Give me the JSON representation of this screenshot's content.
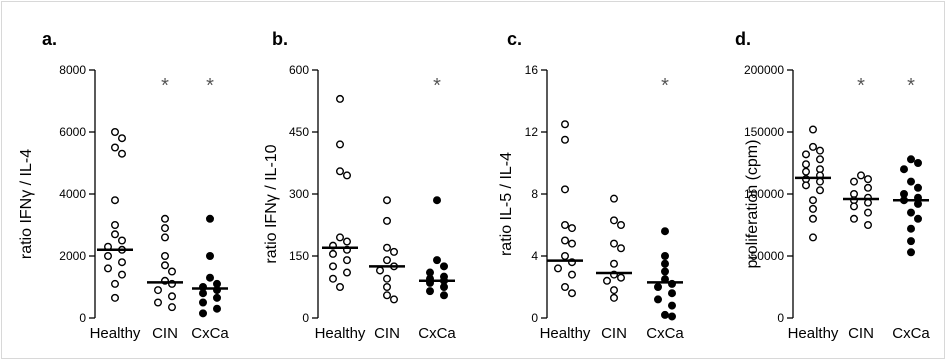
{
  "chart_data": [
    {
      "type": "scatter",
      "panel_label": "a.",
      "ylabel": "ratio IFNγ / IL-4",
      "ylim": [
        0,
        8000
      ],
      "yticks": [
        "0",
        "2000",
        "4000",
        "6000",
        "8000"
      ],
      "categories": [
        "Healthy",
        "CIN",
        "CxCa"
      ],
      "markers": [
        "open",
        "open",
        "filled"
      ],
      "significance": [
        "",
        "*",
        "*"
      ],
      "medians": [
        2200,
        1150,
        950
      ],
      "groups": [
        [
          6000,
          5800,
          5500,
          5300,
          3800,
          3000,
          2700,
          2500,
          2300,
          2200,
          2000,
          1800,
          1600,
          1400,
          1100,
          650
        ],
        [
          3200,
          2900,
          2600,
          2000,
          1700,
          1500,
          1200,
          1100,
          900,
          700,
          500,
          350
        ],
        [
          3200,
          2000,
          1300,
          1100,
          1000,
          900,
          800,
          650,
          500,
          300,
          150
        ]
      ]
    },
    {
      "type": "scatter",
      "panel_label": "b.",
      "ylabel": "ratio IFNγ / IL-10",
      "ylim": [
        0,
        600
      ],
      "yticks": [
        "0",
        "150",
        "300",
        "450",
        "600"
      ],
      "categories": [
        "Healthy",
        "CIN",
        "CxCa"
      ],
      "markers": [
        "open",
        "open",
        "filled"
      ],
      "significance": [
        "",
        "",
        "*"
      ],
      "medians": [
        170,
        125,
        90
      ],
      "groups": [
        [
          530,
          420,
          355,
          345,
          195,
          185,
          175,
          165,
          155,
          140,
          125,
          110,
          95,
          75
        ],
        [
          285,
          235,
          170,
          160,
          140,
          125,
          115,
          95,
          75,
          55,
          45
        ],
        [
          285,
          140,
          125,
          110,
          100,
          95,
          90,
          85,
          75,
          65,
          55
        ]
      ]
    },
    {
      "type": "scatter",
      "panel_label": "c.",
      "ylabel": "ratio IL-5 / IL-4",
      "ylim": [
        0,
        16
      ],
      "yticks": [
        "0",
        "4",
        "8",
        "12",
        "16"
      ],
      "categories": [
        "Healthy",
        "CIN",
        "CxCa"
      ],
      "markers": [
        "open",
        "open",
        "filled"
      ],
      "significance": [
        "",
        "",
        "*"
      ],
      "medians": [
        3.7,
        2.9,
        2.3
      ],
      "groups": [
        [
          12.5,
          11.5,
          8.3,
          6.0,
          5.8,
          5.0,
          4.8,
          4.0,
          3.6,
          3.2,
          2.8,
          2.0,
          1.6
        ],
        [
          7.7,
          6.3,
          6.0,
          4.8,
          4.5,
          3.5,
          2.8,
          2.6,
          2.4,
          1.8,
          1.3
        ],
        [
          5.6,
          4.0,
          3.5,
          3.0,
          2.5,
          2.2,
          2.0,
          1.6,
          1.2,
          0.8,
          0.2,
          0.1
        ]
      ]
    },
    {
      "type": "scatter",
      "panel_label": "d.",
      "ylabel": "proliferation (cpm)",
      "ylim": [
        0,
        200000
      ],
      "yticks": [
        "0",
        "50000",
        "100000",
        "150000",
        "200000"
      ],
      "categories": [
        "Healthy",
        "CIN",
        "CxCa"
      ],
      "markers": [
        "open",
        "open",
        "filled"
      ],
      "significance": [
        "",
        "*",
        "*"
      ],
      "medians": [
        113000,
        96000,
        95000
      ],
      "groups": [
        [
          152000,
          138000,
          135000,
          132000,
          128000,
          124000,
          120000,
          118000,
          115000,
          112000,
          110000,
          107000,
          103000,
          95000,
          88000,
          80000,
          65000
        ],
        [
          115000,
          112000,
          110000,
          105000,
          100000,
          97000,
          95000,
          93000,
          90000,
          85000,
          80000,
          75000
        ],
        [
          128000,
          125000,
          120000,
          110000,
          105000,
          100000,
          97000,
          95000,
          92000,
          85000,
          80000,
          72000,
          62000,
          53000
        ]
      ]
    }
  ]
}
